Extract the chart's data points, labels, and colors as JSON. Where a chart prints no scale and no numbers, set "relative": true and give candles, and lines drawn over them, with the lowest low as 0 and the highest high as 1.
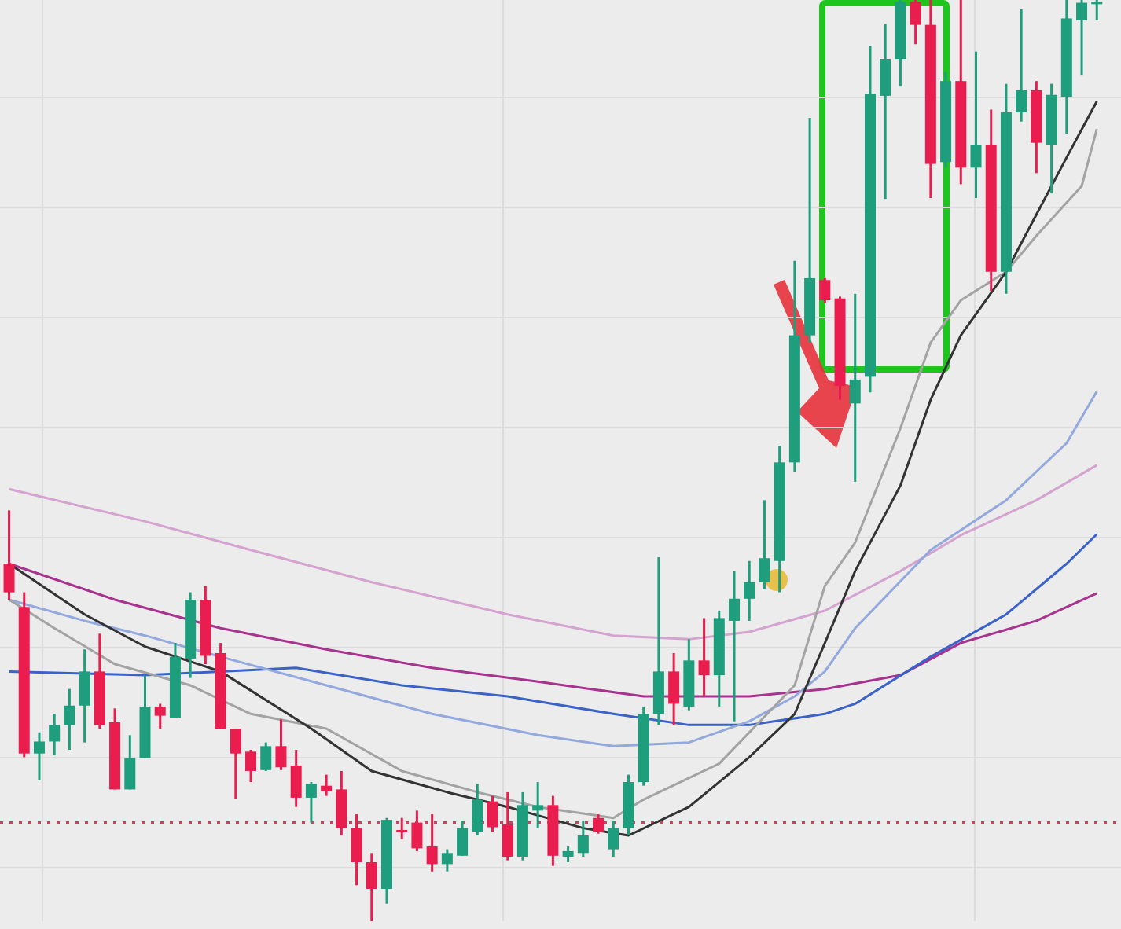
{
  "chart_data": {
    "type": "candlestick",
    "relative": true,
    "grid": true,
    "categories": [
      null,
      null,
      null,
      null,
      null,
      null,
      null,
      null,
      null,
      null,
      null,
      null,
      null,
      null,
      null,
      null,
      null,
      null,
      null,
      null,
      null,
      null,
      null,
      null,
      null,
      null,
      null,
      null,
      null,
      null,
      null,
      null,
      null,
      null,
      null,
      null,
      null,
      null,
      null,
      null,
      null,
      null,
      null,
      null,
      null,
      null,
      null,
      null,
      null,
      null,
      null,
      null,
      null,
      null,
      null,
      null,
      null,
      null,
      null,
      null,
      null,
      null,
      null,
      null,
      null,
      null,
      null,
      null,
      null,
      null,
      null,
      null,
      null
    ],
    "ohlc": [
      [
        0.388,
        0.446,
        0.349,
        0.357
      ],
      [
        0.341,
        0.357,
        0.178,
        0.182
      ],
      [
        0.182,
        0.205,
        0.153,
        0.195
      ],
      [
        0.195,
        0.225,
        0.18,
        0.213
      ],
      [
        0.213,
        0.252,
        0.186,
        0.234
      ],
      [
        0.234,
        0.295,
        0.194,
        0.271
      ],
      [
        0.271,
        0.312,
        0.209,
        0.213
      ],
      [
        0.216,
        0.231,
        0.143,
        0.143
      ],
      [
        0.143,
        0.202,
        0.143,
        0.177
      ],
      [
        0.177,
        0.267,
        0.177,
        0.233
      ],
      [
        0.233,
        0.236,
        0.209,
        0.223
      ],
      [
        0.221,
        0.302,
        0.221,
        0.287
      ],
      [
        0.285,
        0.357,
        0.264,
        0.349
      ],
      [
        0.349,
        0.364,
        0.279,
        0.288
      ],
      [
        0.291,
        0.302,
        0.209,
        0.209
      ],
      [
        0.209,
        0.209,
        0.133,
        0.182
      ],
      [
        0.184,
        0.186,
        0.151,
        0.163
      ],
      [
        0.164,
        0.194,
        0.163,
        0.19
      ],
      [
        0.19,
        0.219,
        0.164,
        0.167
      ],
      [
        0.169,
        0.186,
        0.124,
        0.134
      ],
      [
        0.134,
        0.151,
        0.107,
        0.149
      ],
      [
        0.147,
        0.159,
        0.136,
        0.141
      ],
      [
        0.143,
        0.163,
        0.093,
        0.101
      ],
      [
        0.101,
        0.116,
        0.039,
        0.064
      ],
      [
        0.064,
        0.074,
        0,
        0.035
      ],
      [
        0.035,
        0.112,
        0.019,
        0.11
      ],
      [
        0.099,
        0.112,
        0.089,
        0.097
      ],
      [
        0.107,
        0.12,
        0.076,
        0.079
      ],
      [
        0.081,
        0.116,
        0.054,
        0.062
      ],
      [
        0.062,
        0.078,
        0.054,
        0.074
      ],
      [
        0.071,
        0.109,
        0.071,
        0.101
      ],
      [
        0.097,
        0.149,
        0.093,
        0.132
      ],
      [
        0.13,
        0.136,
        0.097,
        0.102
      ],
      [
        0.105,
        0.14,
        0.066,
        0.07
      ],
      [
        0.07,
        0.14,
        0.066,
        0.126
      ],
      [
        0.12,
        0.151,
        0.101,
        0.126
      ],
      [
        0.126,
        0.136,
        0.06,
        0.071
      ],
      [
        0.07,
        0.081,
        0.064,
        0.076
      ],
      [
        0.074,
        0.109,
        0.07,
        0.093
      ],
      [
        0.112,
        0.116,
        0.095,
        0.097
      ],
      [
        0.078,
        0.109,
        0.07,
        0.101
      ],
      [
        0.101,
        0.159,
        0.093,
        0.151
      ],
      [
        0.151,
        0.233,
        0.147,
        0.225
      ],
      [
        0.225,
        0.395,
        0.213,
        0.271
      ],
      [
        0.271,
        0.291,
        0.213,
        0.236
      ],
      [
        0.233,
        0.306,
        0.229,
        0.283
      ],
      [
        0.283,
        0.329,
        0.244,
        0.267
      ],
      [
        0.267,
        0.337,
        0.233,
        0.329
      ],
      [
        0.326,
        0.38,
        0.217,
        0.35
      ],
      [
        0.35,
        0.391,
        0.326,
        0.368
      ],
      [
        0.368,
        0.457,
        0.36,
        0.394
      ],
      [
        0.391,
        0.516,
        0.357,
        0.498
      ],
      [
        0.498,
        0.717,
        0.488,
        0.636
      ],
      [
        0.636,
        0.872,
        0.628,
        0.698
      ],
      [
        0.696,
        0.698,
        0.671,
        0.674
      ],
      [
        0.676,
        0.678,
        0.566,
        0.581
      ],
      [
        0.562,
        0.681,
        0.477,
        0.588
      ],
      [
        0.591,
        0.95,
        0.574,
        0.898
      ],
      [
        0.896,
        0.974,
        0.784,
        0.936
      ],
      [
        0.936,
        1,
        0.906,
        0.998
      ],
      [
        0.998,
        1,
        0.952,
        0.973
      ],
      [
        0.973,
        1,
        0.785,
        0.822
      ],
      [
        0.824,
        0.922,
        0.818,
        0.912
      ],
      [
        0.912,
        1,
        0.8,
        0.818
      ],
      [
        0.818,
        0.944,
        0.785,
        0.843
      ],
      [
        0.843,
        0.881,
        0.684,
        0.705
      ],
      [
        0.705,
        0.909,
        0.681,
        0.878
      ],
      [
        0.878,
        0.99,
        0.868,
        0.902
      ],
      [
        0.902,
        0.912,
        0.812,
        0.845
      ],
      [
        0.843,
        0.909,
        0.79,
        0.897
      ],
      [
        0.895,
        1,
        0.855,
        0.98
      ],
      [
        0.978,
        1,
        0.918,
        0.997
      ],
      [
        0.997,
        1,
        0.978,
        0.998
      ]
    ],
    "colors": [
      "#ea1d4f",
      "#ea1d4f",
      "#1f9e7e",
      "#1f9e7e",
      "#1f9e7e",
      "#1f9e7e",
      "#ea1d4f",
      "#ea1d4f",
      "#1f9e7e",
      "#1f9e7e",
      "#ea1d4f",
      "#1f9e7e",
      "#1f9e7e",
      "#ea1d4f",
      "#ea1d4f",
      "#ea1d4f",
      "#ea1d4f",
      "#1f9e7e",
      "#ea1d4f",
      "#ea1d4f",
      "#1f9e7e",
      "#ea1d4f",
      "#ea1d4f",
      "#ea1d4f",
      "#ea1d4f",
      "#1f9e7e",
      "#ea1d4f",
      "#ea1d4f",
      "#ea1d4f",
      "#1f9e7e",
      "#1f9e7e",
      "#1f9e7e",
      "#ea1d4f",
      "#ea1d4f",
      "#1f9e7e",
      "#1f9e7e",
      "#ea1d4f",
      "#1f9e7e",
      "#1f9e7e",
      "#ea1d4f",
      "#1f9e7e",
      "#1f9e7e",
      "#1f9e7e",
      "#1f9e7e",
      "#ea1d4f",
      "#1f9e7e",
      "#ea1d4f",
      "#1f9e7e",
      "#1f9e7e",
      "#1f9e7e",
      "#1f9e7e",
      "#1f9e7e",
      "#1f9e7e",
      "#1f9e7e",
      "#ea1d4f",
      "#ea1d4f",
      "#1f9e7e",
      "#1f9e7e",
      "#1f9e7e",
      "#1f9e7e",
      "#ea1d4f",
      "#ea1d4f",
      "#1f9e7e",
      "#ea1d4f",
      "#1f9e7e",
      "#ea1d4f",
      "#1f9e7e",
      "#1f9e7e",
      "#ea1d4f",
      "#1f9e7e",
      "#1f9e7e",
      "#1f9e7e",
      "#1f9e7e"
    ],
    "series": [
      {
        "type": "line",
        "color": "#d4a3cf",
        "values": [
          0.469,
          null,
          null,
          null,
          null,
          null,
          null,
          null,
          null,
          0.434,
          null,
          null,
          null,
          null,
          null,
          null,
          0.403,
          null,
          null,
          null,
          null,
          null,
          null,
          null,
          0.368,
          null,
          null,
          null,
          null,
          null,
          null,
          null,
          null,
          0.333,
          null,
          null,
          null,
          null,
          null,
          null,
          0.31,
          null,
          null,
          null,
          null,
          0.306,
          null,
          null,
          null,
          0.314,
          null,
          null,
          null,
          null,
          0.337,
          null,
          null,
          null,
          null,
          0.38,
          null,
          null,
          null,
          0.419,
          null,
          null,
          null,
          null,
          0.457,
          null,
          null,
          null,
          0.495
        ]
      },
      {
        "type": "line",
        "color": "#a8338f",
        "values": [
          0.388,
          null,
          null,
          null,
          null,
          null,
          null,
          0.349,
          null,
          null,
          null,
          null,
          null,
          null,
          0.318,
          null,
          null,
          null,
          null,
          null,
          null,
          0.295,
          null,
          null,
          null,
          null,
          null,
          null,
          0.275,
          null,
          null,
          null,
          null,
          null,
          null,
          0.26,
          null,
          null,
          null,
          null,
          null,
          null,
          0.244,
          null,
          null,
          null,
          null,
          null,
          null,
          0.244,
          null,
          null,
          null,
          null,
          0.252,
          null,
          null,
          null,
          null,
          0.267,
          null,
          null,
          null,
          0.302,
          null,
          null,
          null,
          null,
          0.326,
          null,
          null,
          null,
          0.356
        ]
      },
      {
        "type": "line",
        "color": "#3a62c9",
        "values": [
          0.271,
          null,
          null,
          null,
          null,
          null,
          null,
          null,
          null,
          0.267,
          null,
          null,
          null,
          null,
          null,
          null,
          null,
          null,
          null,
          0.275,
          null,
          null,
          null,
          null,
          null,
          null,
          0.256,
          null,
          null,
          null,
          null,
          null,
          null,
          0.244,
          null,
          null,
          null,
          null,
          null,
          null,
          0.225,
          null,
          null,
          null,
          null,
          0.213,
          null,
          null,
          null,
          0.213,
          null,
          null,
          null,
          null,
          0.225,
          null,
          0.236,
          null,
          null,
          null,
          null,
          0.287,
          null,
          null,
          null,
          null,
          0.333,
          null,
          null,
          null,
          0.388,
          null,
          0.42
        ]
      },
      {
        "type": "line",
        "color": "#93a9de",
        "values": [
          0.349,
          null,
          null,
          null,
          null,
          0.326,
          null,
          null,
          null,
          0.31,
          null,
          null,
          null,
          null,
          0.287,
          null,
          null,
          null,
          null,
          null,
          null,
          0.256,
          null,
          null,
          null,
          null,
          null,
          null,
          0.225,
          null,
          null,
          null,
          null,
          null,
          null,
          0.202,
          null,
          null,
          null,
          null,
          0.19,
          null,
          null,
          null,
          null,
          0.194,
          null,
          null,
          null,
          0.217,
          null,
          null,
          0.244,
          null,
          0.271,
          null,
          0.318,
          null,
          null,
          null,
          null,
          0.403,
          null,
          null,
          null,
          null,
          0.457,
          null,
          null,
          null,
          0.519,
          null,
          0.575
        ]
      },
      {
        "type": "line",
        "color": "#a3a3a3",
        "values": [
          0.349,
          null,
          null,
          0.318,
          null,
          null,
          null,
          0.279,
          null,
          null,
          null,
          null,
          0.256,
          null,
          null,
          null,
          0.225,
          null,
          null,
          null,
          null,
          0.209,
          null,
          null,
          null,
          null,
          0.163,
          null,
          null,
          null,
          null,
          0.14,
          null,
          null,
          null,
          0.124,
          null,
          null,
          null,
          null,
          0.112,
          null,
          0.132,
          null,
          null,
          null,
          null,
          0.171,
          null,
          null,
          null,
          null,
          0.256,
          null,
          0.364,
          null,
          0.411,
          null,
          null,
          0.535,
          null,
          0.628,
          null,
          0.674,
          null,
          null,
          0.705,
          null,
          0.744,
          null,
          null,
          0.798,
          0.86
        ]
      },
      {
        "type": "line",
        "color": "#333333",
        "values": [
          0.388,
          null,
          null,
          null,
          null,
          0.333,
          null,
          null,
          null,
          0.298,
          null,
          null,
          null,
          null,
          0.271,
          null,
          null,
          null,
          null,
          null,
          0.209,
          null,
          null,
          null,
          0.163,
          null,
          null,
          null,
          null,
          0.14,
          null,
          null,
          null,
          0.124,
          null,
          null,
          null,
          null,
          0.101,
          null,
          null,
          0.093,
          null,
          null,
          null,
          0.124,
          null,
          null,
          null,
          0.178,
          null,
          null,
          0.225,
          null,
          0.302,
          null,
          0.38,
          null,
          null,
          0.473,
          null,
          0.566,
          null,
          0.636,
          null,
          null,
          0.705,
          null,
          0.767,
          null,
          0.829,
          null,
          0.89
        ]
      }
    ],
    "ref_lines": [
      {
        "axis": "y",
        "value": 0.107,
        "color": "#d04060",
        "line_style": "dotted"
      }
    ]
  }
}
